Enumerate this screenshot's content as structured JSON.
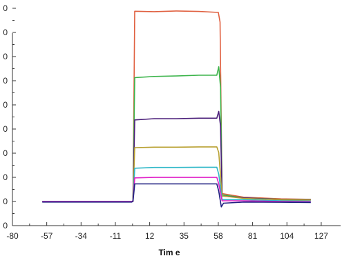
{
  "chart_data": {
    "type": "line",
    "title": "",
    "xlabel": "Tim e",
    "ylabel": "",
    "xlim": [
      -80,
      140
    ],
    "x_ticks": [
      "-80",
      "-57",
      "-34",
      "-11",
      "12",
      "35",
      "58",
      "81",
      "104",
      "127"
    ],
    "y_tick_labels": [
      "0",
      "0",
      "0",
      "0",
      "0",
      "0",
      "0",
      "0",
      "0",
      "0"
    ],
    "grid": false,
    "legend": "none",
    "series": [
      {
        "color": "#e06040",
        "points": [
          [
            -60,
            0.47
          ],
          [
            -20,
            0.47
          ],
          [
            0,
            0.47
          ],
          [
            0.8,
            0.47
          ],
          [
            2,
            8.35
          ],
          [
            15,
            8.33
          ],
          [
            30,
            8.36
          ],
          [
            45,
            8.34
          ],
          [
            58,
            8.3
          ],
          [
            59.2,
            7.9
          ],
          [
            60.5,
            0.8
          ],
          [
            75,
            0.65
          ],
          [
            100,
            0.58
          ],
          [
            120,
            0.56
          ]
        ]
      },
      {
        "color": "#3cb44b",
        "points": [
          [
            -60,
            0.47
          ],
          [
            -20,
            0.47
          ],
          [
            0,
            0.47
          ],
          [
            0.8,
            0.5
          ],
          [
            2,
            5.6
          ],
          [
            15,
            5.65
          ],
          [
            30,
            5.67
          ],
          [
            45,
            5.7
          ],
          [
            57,
            5.7
          ],
          [
            58.3,
            6.05
          ],
          [
            59.5,
            5.2
          ],
          [
            60.5,
            0.75
          ],
          [
            75,
            0.62
          ],
          [
            100,
            0.56
          ],
          [
            120,
            0.55
          ]
        ]
      },
      {
        "color": "#4b1f7a",
        "points": [
          [
            -60,
            0.47
          ],
          [
            -20,
            0.47
          ],
          [
            0,
            0.47
          ],
          [
            0.8,
            0.5
          ],
          [
            2,
            3.85
          ],
          [
            15,
            3.9
          ],
          [
            30,
            3.9
          ],
          [
            45,
            3.92
          ],
          [
            57,
            3.92
          ],
          [
            58.3,
            4.2
          ],
          [
            59.5,
            3.6
          ],
          [
            60.5,
            0.7
          ],
          [
            75,
            0.62
          ],
          [
            100,
            0.55
          ],
          [
            120,
            0.54
          ]
        ]
      },
      {
        "color": "#b8a030",
        "points": [
          [
            -60,
            0.47
          ],
          [
            -20,
            0.47
          ],
          [
            0,
            0.47
          ],
          [
            0.8,
            0.5
          ],
          [
            2,
            2.7
          ],
          [
            15,
            2.72
          ],
          [
            30,
            2.72
          ],
          [
            45,
            2.73
          ],
          [
            57,
            2.73
          ],
          [
            58.3,
            2.5
          ],
          [
            60.5,
            0.7
          ],
          [
            75,
            0.6
          ],
          [
            100,
            0.54
          ],
          [
            120,
            0.53
          ]
        ]
      },
      {
        "color": "#30b8c8",
        "points": [
          [
            -60,
            0.47
          ],
          [
            -20,
            0.47
          ],
          [
            0,
            0.47
          ],
          [
            0.8,
            0.5
          ],
          [
            2,
            1.85
          ],
          [
            15,
            1.88
          ],
          [
            30,
            1.88
          ],
          [
            45,
            1.89
          ],
          [
            57,
            1.89
          ],
          [
            58.3,
            1.6
          ],
          [
            60.5,
            0.55
          ],
          [
            75,
            0.55
          ],
          [
            100,
            0.5
          ],
          [
            120,
            0.49
          ]
        ]
      },
      {
        "color": "#e020c8",
        "points": [
          [
            -60,
            0.47
          ],
          [
            -20,
            0.47
          ],
          [
            0,
            0.47
          ],
          [
            0.8,
            0.5
          ],
          [
            2,
            1.45
          ],
          [
            15,
            1.47
          ],
          [
            30,
            1.47
          ],
          [
            45,
            1.47
          ],
          [
            57,
            1.47
          ],
          [
            58.3,
            1.2
          ],
          [
            60.5,
            0.5
          ],
          [
            75,
            0.5
          ],
          [
            100,
            0.47
          ],
          [
            120,
            0.46
          ]
        ]
      },
      {
        "color": "#1e1e80",
        "points": [
          [
            -60,
            0.45
          ],
          [
            -20,
            0.45
          ],
          [
            0,
            0.45
          ],
          [
            0.8,
            0.48
          ],
          [
            2,
            1.2
          ],
          [
            15,
            1.2
          ],
          [
            30,
            1.2
          ],
          [
            45,
            1.2
          ],
          [
            57,
            1.2
          ],
          [
            58.3,
            0.9
          ],
          [
            60,
            0.25
          ],
          [
            61.5,
            0.4
          ],
          [
            75,
            0.45
          ],
          [
            100,
            0.44
          ],
          [
            120,
            0.43
          ]
        ]
      }
    ]
  }
}
